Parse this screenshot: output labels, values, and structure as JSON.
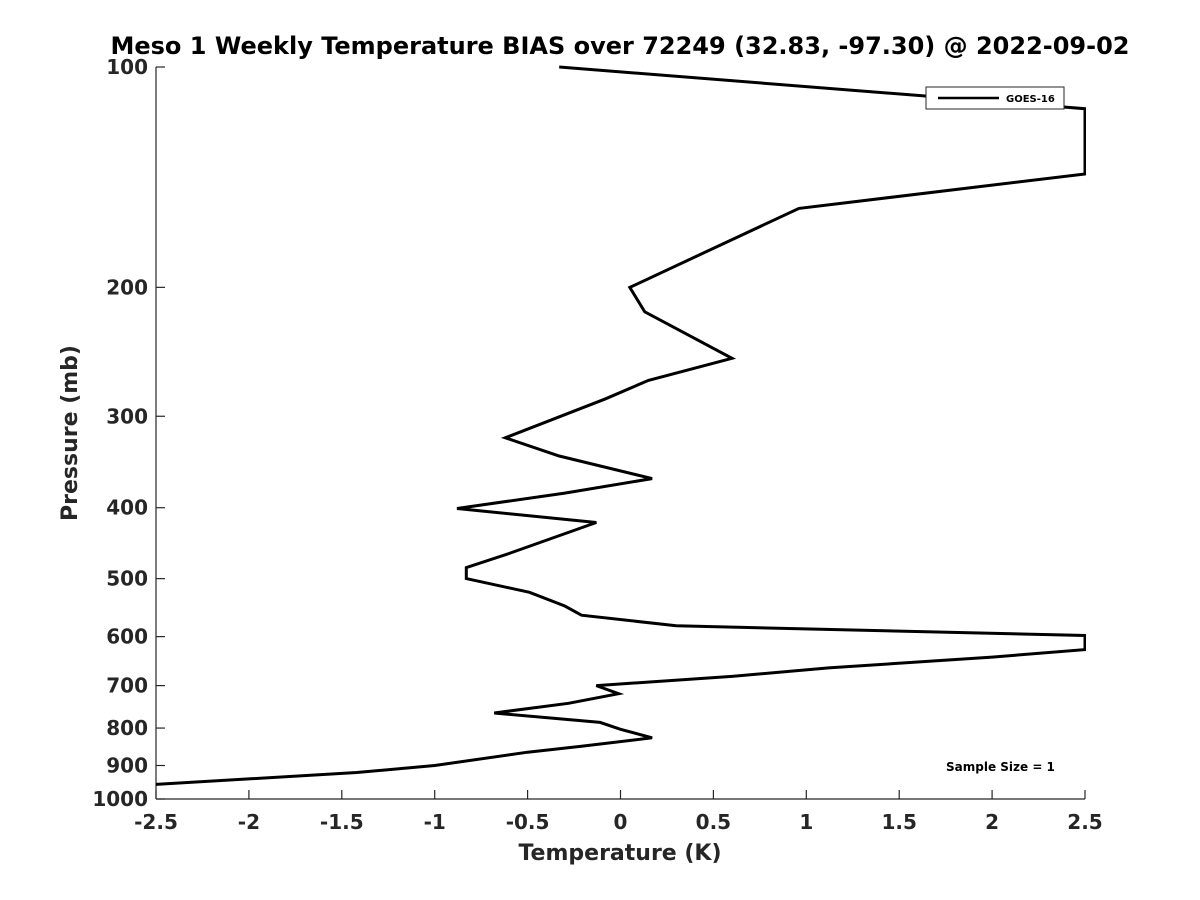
{
  "chart_data": {
    "type": "line",
    "title": "Meso 1 Weekly Temperature BIAS over 72249 (32.83, -97.30) @ 2022-09-02",
    "xlabel": "Temperature (K)",
    "ylabel": "Pressure (mb)",
    "xlim": [
      -2.5,
      2.5
    ],
    "ylim": [
      100,
      1000
    ],
    "y_scale": "log",
    "y_reversed": true,
    "x_ticks": [
      "-2.5",
      "-2",
      "-1.5",
      "-1",
      "-0.5",
      "0",
      "0.5",
      "1",
      "1.5",
      "2",
      "2.5"
    ],
    "y_ticks": [
      "100",
      "200",
      "300",
      "400",
      "500",
      "600",
      "700",
      "800",
      "900",
      "1000"
    ],
    "grid": false,
    "legend": {
      "position": "top-right",
      "entries": [
        "GOES-16"
      ]
    },
    "annotation": "Sample Size = 1",
    "series": [
      {
        "name": "GOES-16",
        "color": "#000000",
        "points": [
          [
            -0.33,
            100
          ],
          [
            2.5,
            114
          ],
          [
            2.5,
            140
          ],
          [
            0.96,
            156
          ],
          [
            0.05,
            200
          ],
          [
            0.13,
            216
          ],
          [
            0.6,
            250
          ],
          [
            0.15,
            268
          ],
          [
            -0.08,
            284
          ],
          [
            -0.62,
            321
          ],
          [
            -0.33,
            340
          ],
          [
            0.17,
            365
          ],
          [
            -0.3,
            382
          ],
          [
            -0.88,
            401
          ],
          [
            -0.13,
            419
          ],
          [
            -0.6,
            462
          ],
          [
            -0.83,
            483
          ],
          [
            -0.83,
            500
          ],
          [
            -0.49,
            522
          ],
          [
            -0.3,
            545
          ],
          [
            -0.21,
            561
          ],
          [
            0.3,
            580
          ],
          [
            2.5,
            598
          ],
          [
            2.5,
            625
          ],
          [
            2.0,
            640
          ],
          [
            1.12,
            662
          ],
          [
            0.6,
            680
          ],
          [
            -0.13,
            700
          ],
          [
            -0.01,
            718
          ],
          [
            -0.28,
            740
          ],
          [
            -0.68,
            763
          ],
          [
            -0.11,
            786
          ],
          [
            0.0,
            803
          ],
          [
            0.17,
            825
          ],
          [
            -0.21,
            847
          ],
          [
            -0.5,
            863
          ],
          [
            -1.0,
            900
          ],
          [
            -1.42,
            920
          ],
          [
            -2.5,
            955
          ]
        ]
      }
    ]
  }
}
